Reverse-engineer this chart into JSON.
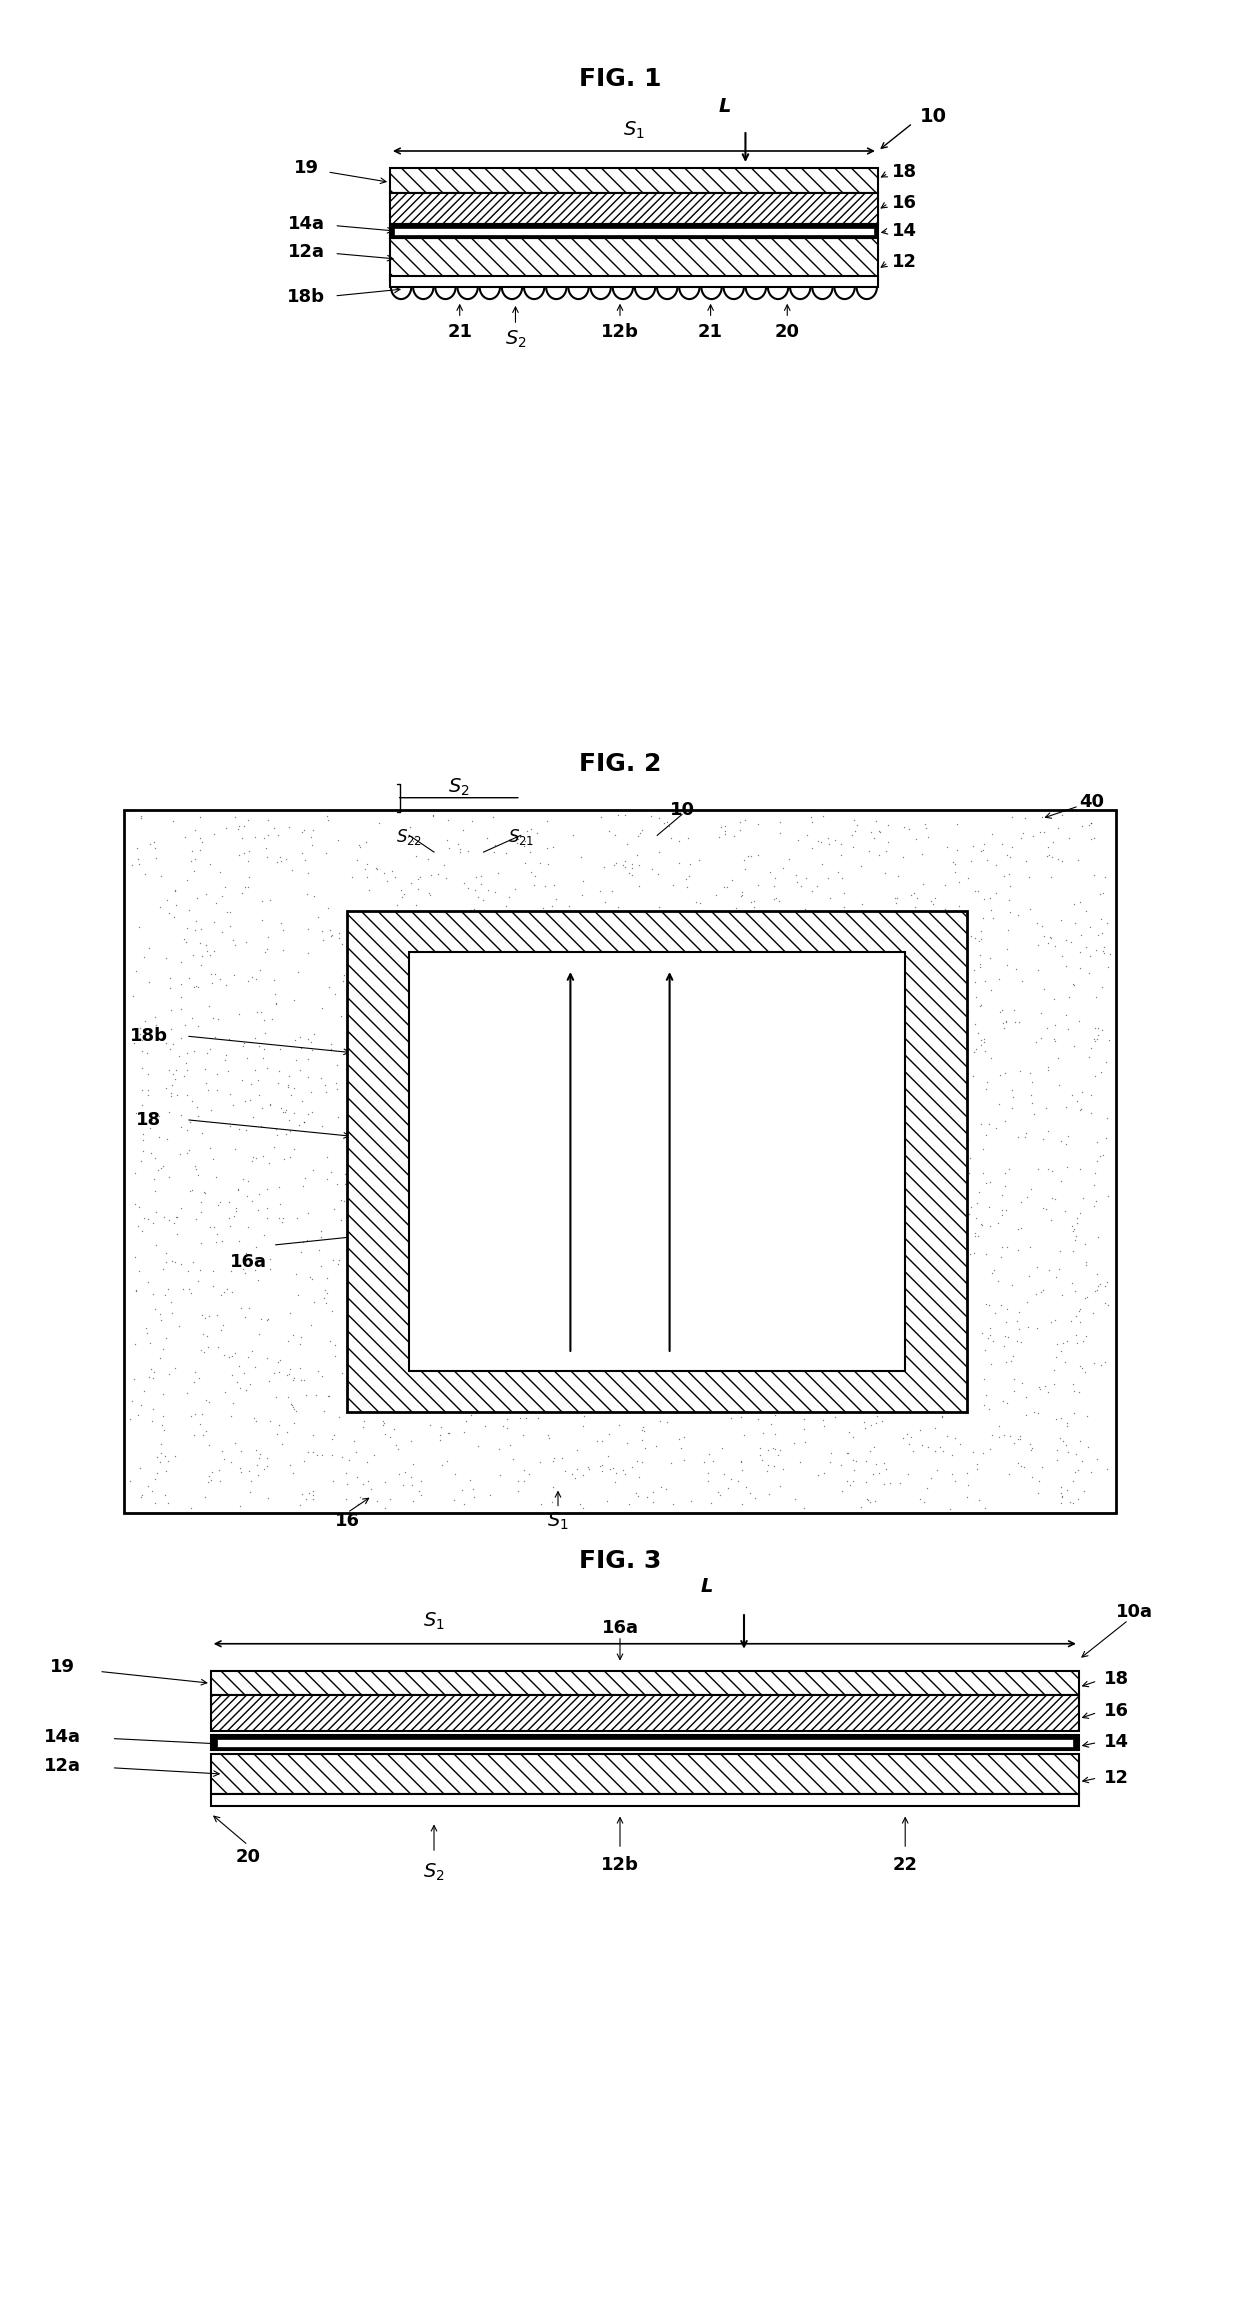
{
  "fig_title1": "FIG. 1",
  "fig_title2": "FIG. 2",
  "fig_title3": "FIG. 3",
  "bg_color": "#ffffff",
  "line_color": "#000000",
  "hatch_color": "#000000",
  "label_fontsize": 14,
  "title_fontsize": 18,
  "subscript_fontsize": 10
}
